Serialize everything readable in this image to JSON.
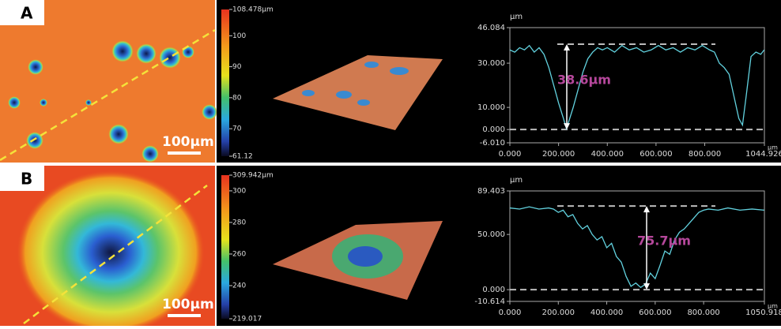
{
  "panels": [
    {
      "label": "A",
      "scale_bar": "100μm",
      "colorbar": {
        "ticks": [
          {
            "value": 108.478,
            "label": "108.478μm"
          },
          100,
          90,
          80,
          70,
          61.12
        ],
        "lim": [
          61.12,
          108.478
        ]
      }
    },
    {
      "label": "B",
      "scale_bar": "100μm",
      "colorbar": {
        "ticks": [
          {
            "value": 309.942,
            "label": "309.942μm"
          },
          300,
          280,
          260,
          240,
          219.017
        ],
        "lim": [
          219.017,
          309.942
        ]
      }
    }
  ],
  "chart_data": [
    {
      "type": "line",
      "ylabel": "μm",
      "xlabel": "μm",
      "annotation": "38.6μm",
      "hlines": [
        38.6,
        0
      ],
      "xlim": [
        0,
        1044.926
      ],
      "ylim": [
        -6.01,
        46.084
      ],
      "xticks": [
        {
          "value": 0,
          "label": "0.000"
        },
        {
          "value": 200,
          "label": "200.000"
        },
        {
          "value": 400,
          "label": "400.000"
        },
        {
          "value": 600,
          "label": "600.000"
        },
        {
          "value": 800,
          "label": "800.000"
        },
        {
          "value": 1044.926,
          "label": "1044.926"
        }
      ],
      "yticks": [
        46.084,
        {
          "value": 30,
          "label": "30.000"
        },
        {
          "value": 10,
          "label": "10.000"
        },
        {
          "value": 0,
          "label": "0.000"
        },
        {
          "value": -6.01,
          "label": "-6.010"
        }
      ],
      "series": [
        {
          "color": "#62d2df",
          "x": [
            0,
            20,
            40,
            60,
            80,
            100,
            120,
            140,
            160,
            180,
            200,
            220,
            232,
            240,
            260,
            280,
            300,
            320,
            340,
            360,
            380,
            400,
            430,
            460,
            490,
            520,
            550,
            580,
            610,
            640,
            670,
            700,
            730,
            760,
            790,
            820,
            840,
            860,
            880,
            900,
            920,
            940,
            955,
            970,
            990,
            1010,
            1030,
            1044
          ],
          "values": [
            36,
            35,
            37,
            36,
            38,
            35,
            37,
            34,
            28,
            20,
            12,
            5,
            0.5,
            3,
            10,
            18,
            26,
            32,
            35,
            37,
            36,
            37,
            35,
            38,
            36,
            37,
            35,
            36,
            38,
            36,
            37,
            35,
            37,
            36,
            38,
            36,
            35,
            30,
            28,
            25,
            15,
            5,
            2,
            15,
            33,
            35,
            34,
            36
          ]
        }
      ]
    },
    {
      "type": "line",
      "ylabel": "μm",
      "xlabel": "μm",
      "annotation": "75.7μm",
      "hlines": [
        75.7,
        0
      ],
      "xlim": [
        0,
        1050.918
      ],
      "ylim": [
        -10.614,
        89.403
      ],
      "xticks": [
        {
          "value": 0,
          "label": "0.000"
        },
        {
          "value": 200,
          "label": "200.000"
        },
        {
          "value": 400,
          "label": "400.000"
        },
        {
          "value": 600,
          "label": "600.000"
        },
        {
          "value": 800,
          "label": "800.000"
        },
        {
          "value": 1050.918,
          "label": "1050.918"
        }
      ],
      "yticks": [
        89.403,
        {
          "value": 50,
          "label": "50.000"
        },
        {
          "value": 0,
          "label": "0.000"
        },
        {
          "value": -10.614,
          "label": "-10.614"
        }
      ],
      "series": [
        {
          "color": "#62d2df",
          "x": [
            0,
            40,
            80,
            120,
            160,
            180,
            200,
            220,
            240,
            260,
            280,
            300,
            320,
            340,
            360,
            380,
            400,
            420,
            440,
            460,
            480,
            500,
            520,
            540,
            560,
            580,
            600,
            620,
            640,
            660,
            680,
            700,
            720,
            740,
            760,
            780,
            800,
            820,
            860,
            900,
            950,
            1000,
            1050
          ],
          "values": [
            74,
            73,
            75,
            73,
            74,
            73,
            70,
            72,
            66,
            68,
            60,
            55,
            58,
            50,
            45,
            48,
            38,
            42,
            30,
            25,
            12,
            3,
            6,
            2,
            5,
            15,
            10,
            22,
            35,
            32,
            45,
            52,
            55,
            60,
            65,
            70,
            72,
            73,
            72,
            74,
            72,
            73,
            72
          ]
        }
      ]
    }
  ]
}
